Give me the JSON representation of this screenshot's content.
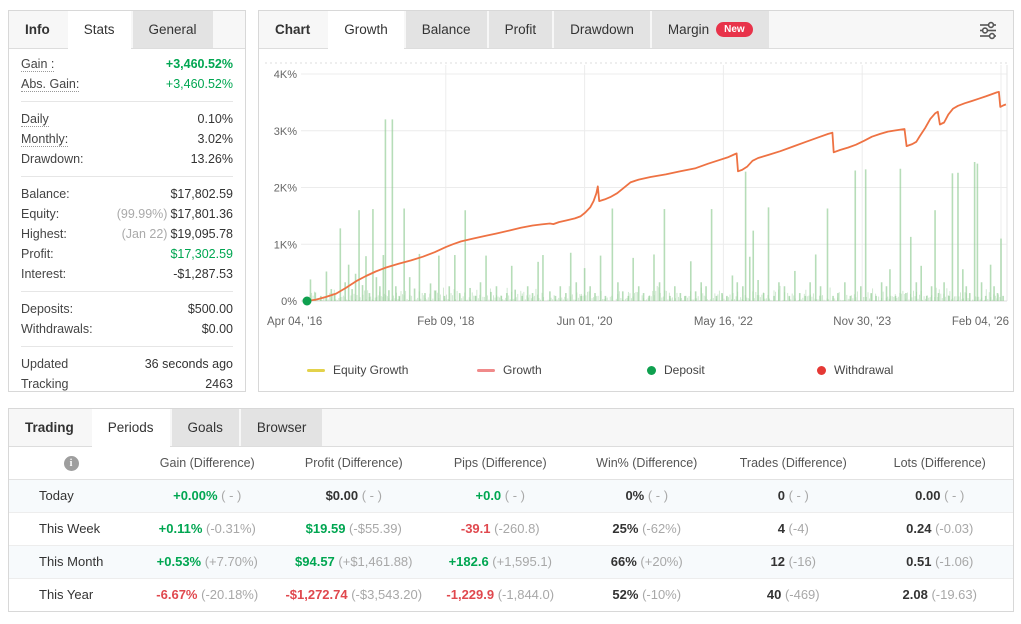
{
  "colors": {
    "green": "#00a651",
    "red": "#e0484e",
    "dark": "#333333",
    "muted": "#a8a8a8",
    "accent_orange": "#ee7243",
    "bar_green": "#97cf9a",
    "deposit_green": "#0fa04f",
    "withdrawal_red": "#e53935",
    "badge_red": "#e8334a",
    "legend_equity": "#e3d24b",
    "legend_growth": "#f08a8a"
  },
  "left_panel": {
    "tabs": [
      {
        "label": "Info",
        "state": "plain"
      },
      {
        "label": "Stats",
        "state": "active"
      },
      {
        "label": "General",
        "state": "inactive"
      }
    ],
    "rows": [
      {
        "label": "Gain :",
        "value": "+3,460.52%",
        "value_color": "green",
        "bold": true,
        "dotted": true
      },
      {
        "label": "Abs. Gain:",
        "value": "+3,460.52%",
        "value_color": "green",
        "dotted": true
      },
      {
        "divider": true
      },
      {
        "label": "Daily",
        "value": "0.10%",
        "dotted": true
      },
      {
        "label": "Monthly:",
        "value": "3.02%",
        "dotted": true
      },
      {
        "label": "Drawdown:",
        "value": "13.26%"
      },
      {
        "divider": true
      },
      {
        "label": "Balance:",
        "value": "$17,802.59"
      },
      {
        "label": "Equity:",
        "prefix": "(99.99%)",
        "value": "$17,801.36"
      },
      {
        "label": "Highest:",
        "prefix": "(Jan 22)",
        "value": "$19,095.78"
      },
      {
        "label": "Profit:",
        "value": "$17,302.59",
        "value_color": "green"
      },
      {
        "label": "Interest:",
        "value": "-$1,287.53"
      },
      {
        "divider": true
      },
      {
        "label": "Deposits:",
        "value": "$500.00"
      },
      {
        "label": "Withdrawals:",
        "value": "$0.00"
      },
      {
        "divider": true
      },
      {
        "label": "Updated",
        "value": "36 seconds ago"
      },
      {
        "label": "Tracking",
        "value": "2463"
      }
    ]
  },
  "chart_panel": {
    "tabs": [
      {
        "label": "Chart",
        "state": "plain"
      },
      {
        "label": "Growth",
        "state": "active"
      },
      {
        "label": "Balance",
        "state": "inactive"
      },
      {
        "label": "Profit",
        "state": "inactive"
      },
      {
        "label": "Drawdown",
        "state": "inactive"
      },
      {
        "label": "Margin",
        "state": "inactive",
        "badge": "New"
      }
    ]
  },
  "chart_data": {
    "type": "line+bar",
    "title": "Growth",
    "y_ticks": [
      "0%",
      "1K%",
      "2K%",
      "3K%",
      "4K%"
    ],
    "y_max_pct": 4000,
    "x_ticks": [
      "Apr 04, '16",
      "Feb 09, '18",
      "Jun 01, '20",
      "May 16, '22",
      "Nov 30, '23",
      "Feb 04, '26"
    ],
    "legend": [
      {
        "label": "Equity Growth",
        "type": "line",
        "color_key": "legend_equity"
      },
      {
        "label": "Growth",
        "type": "line",
        "color_key": "legend_growth"
      },
      {
        "label": "Deposit",
        "type": "dot",
        "color_key": "deposit_green"
      },
      {
        "label": "Withdrawal",
        "type": "dot",
        "color_key": "withdrawal_red"
      }
    ],
    "deposit_marker": {
      "frac": 0,
      "value": 0
    },
    "growth_line": [
      [
        0,
        0
      ],
      [
        0.013,
        25
      ],
      [
        0.027,
        70
      ],
      [
        0.042,
        130
      ],
      [
        0.056,
        230
      ],
      [
        0.071,
        350
      ],
      [
        0.085,
        440
      ],
      [
        0.099,
        520
      ],
      [
        0.114,
        590
      ],
      [
        0.132,
        655
      ],
      [
        0.15,
        715
      ],
      [
        0.167,
        780
      ],
      [
        0.184,
        860
      ],
      [
        0.2,
        950
      ],
      [
        0.21,
        1000
      ],
      [
        0.222,
        1050
      ],
      [
        0.239,
        1100
      ],
      [
        0.256,
        1145
      ],
      [
        0.273,
        1190
      ],
      [
        0.291,
        1240
      ],
      [
        0.308,
        1290
      ],
      [
        0.325,
        1330
      ],
      [
        0.338,
        1350
      ],
      [
        0.35,
        1365
      ],
      [
        0.355,
        1355
      ],
      [
        0.363,
        1390
      ],
      [
        0.374,
        1420
      ],
      [
        0.386,
        1455
      ],
      [
        0.394,
        1490
      ],
      [
        0.401,
        1560
      ],
      [
        0.408,
        1650
      ],
      [
        0.413,
        1760
      ],
      [
        0.417,
        1900
      ],
      [
        0.419,
        2020
      ],
      [
        0.421,
        1760
      ],
      [
        0.429,
        1790
      ],
      [
        0.437,
        1830
      ],
      [
        0.447,
        1900
      ],
      [
        0.458,
        2010
      ],
      [
        0.466,
        2090
      ],
      [
        0.478,
        2140
      ],
      [
        0.495,
        2185
      ],
      [
        0.517,
        2230
      ],
      [
        0.538,
        2285
      ],
      [
        0.56,
        2340
      ],
      [
        0.578,
        2420
      ],
      [
        0.593,
        2480
      ],
      [
        0.606,
        2530
      ],
      [
        0.617,
        2590
      ],
      [
        0.619,
        2600
      ],
      [
        0.621,
        2285
      ],
      [
        0.627,
        2310
      ],
      [
        0.634,
        2365
      ],
      [
        0.642,
        2470
      ],
      [
        0.65,
        2520
      ],
      [
        0.665,
        2575
      ],
      [
        0.682,
        2640
      ],
      [
        0.701,
        2725
      ],
      [
        0.719,
        2805
      ],
      [
        0.737,
        2885
      ],
      [
        0.751,
        2945
      ],
      [
        0.757,
        2965
      ],
      [
        0.759,
        2620
      ],
      [
        0.768,
        2660
      ],
      [
        0.78,
        2705
      ],
      [
        0.791,
        2755
      ],
      [
        0.803,
        2825
      ],
      [
        0.814,
        2895
      ],
      [
        0.826,
        2945
      ],
      [
        0.837,
        2985
      ],
      [
        0.847,
        3005
      ],
      [
        0.861,
        3030
      ],
      [
        0.864,
        2730
      ],
      [
        0.872,
        2765
      ],
      [
        0.878,
        2805
      ],
      [
        0.883,
        2905
      ],
      [
        0.891,
        3055
      ],
      [
        0.898,
        3205
      ],
      [
        0.905,
        3305
      ],
      [
        0.909,
        3335
      ],
      [
        0.912,
        3110
      ],
      [
        0.918,
        3145
      ],
      [
        0.924,
        3285
      ],
      [
        0.931,
        3390
      ],
      [
        0.938,
        3440
      ],
      [
        0.948,
        3485
      ],
      [
        0.958,
        3525
      ],
      [
        0.968,
        3565
      ],
      [
        0.978,
        3605
      ],
      [
        0.987,
        3645
      ],
      [
        0.994,
        3675
      ],
      [
        0.997,
        3685
      ],
      [
        0.999,
        3420
      ],
      [
        1.003,
        3445
      ],
      [
        1.007,
        3465
      ]
    ],
    "equity_bars": [
      [
        0.005,
        380
      ],
      [
        0.012,
        150
      ],
      [
        0.02,
        90
      ],
      [
        0.028,
        520
      ],
      [
        0.035,
        210
      ],
      [
        0.04,
        120
      ],
      [
        0.048,
        1280
      ],
      [
        0.055,
        330
      ],
      [
        0.06,
        640
      ],
      [
        0.065,
        210
      ],
      [
        0.07,
        480
      ],
      [
        0.075,
        1600
      ],
      [
        0.08,
        280
      ],
      [
        0.085,
        790
      ],
      [
        0.09,
        140
      ],
      [
        0.095,
        1620
      ],
      [
        0.1,
        420
      ],
      [
        0.105,
        260
      ],
      [
        0.11,
        810
      ],
      [
        0.113,
        3200
      ],
      [
        0.118,
        190
      ],
      [
        0.123,
        3200
      ],
      [
        0.128,
        260
      ],
      [
        0.133,
        90
      ],
      [
        0.14,
        1630
      ],
      [
        0.148,
        420
      ],
      [
        0.155,
        220
      ],
      [
        0.162,
        830
      ],
      [
        0.17,
        140
      ],
      [
        0.178,
        310
      ],
      [
        0.185,
        180
      ],
      [
        0.19,
        800
      ],
      [
        0.198,
        90
      ],
      [
        0.205,
        260
      ],
      [
        0.213,
        810
      ],
      [
        0.22,
        140
      ],
      [
        0.228,
        1600
      ],
      [
        0.235,
        230
      ],
      [
        0.243,
        90
      ],
      [
        0.25,
        330
      ],
      [
        0.258,
        800
      ],
      [
        0.265,
        160
      ],
      [
        0.273,
        260
      ],
      [
        0.28,
        90
      ],
      [
        0.288,
        140
      ],
      [
        0.295,
        620
      ],
      [
        0.3,
        200
      ],
      [
        0.31,
        90
      ],
      [
        0.318,
        260
      ],
      [
        0.325,
        140
      ],
      [
        0.333,
        690
      ],
      [
        0.34,
        810
      ],
      [
        0.35,
        170
      ],
      [
        0.358,
        90
      ],
      [
        0.365,
        260
      ],
      [
        0.373,
        140
      ],
      [
        0.38,
        850
      ],
      [
        0.388,
        330
      ],
      [
        0.395,
        90
      ],
      [
        0.4,
        580
      ],
      [
        0.408,
        260
      ],
      [
        0.415,
        140
      ],
      [
        0.423,
        800
      ],
      [
        0.43,
        90
      ],
      [
        0.44,
        1630
      ],
      [
        0.448,
        330
      ],
      [
        0.455,
        170
      ],
      [
        0.463,
        90
      ],
      [
        0.47,
        760
      ],
      [
        0.478,
        260
      ],
      [
        0.485,
        140
      ],
      [
        0.493,
        90
      ],
      [
        0.5,
        820
      ],
      [
        0.508,
        330
      ],
      [
        0.515,
        1620
      ],
      [
        0.523,
        90
      ],
      [
        0.53,
        260
      ],
      [
        0.538,
        140
      ],
      [
        0.545,
        90
      ],
      [
        0.553,
        700
      ],
      [
        0.56,
        170
      ],
      [
        0.568,
        330
      ],
      [
        0.575,
        260
      ],
      [
        0.583,
        1620
      ],
      [
        0.59,
        90
      ],
      [
        0.598,
        140
      ],
      [
        0.605,
        90
      ],
      [
        0.613,
        450
      ],
      [
        0.62,
        330
      ],
      [
        0.628,
        260
      ],
      [
        0.632,
        2280
      ],
      [
        0.638,
        780
      ],
      [
        0.643,
        1240
      ],
      [
        0.65,
        370
      ],
      [
        0.658,
        140
      ],
      [
        0.665,
        1650
      ],
      [
        0.673,
        90
      ],
      [
        0.68,
        330
      ],
      [
        0.688,
        260
      ],
      [
        0.695,
        90
      ],
      [
        0.703,
        530
      ],
      [
        0.71,
        140
      ],
      [
        0.718,
        90
      ],
      [
        0.725,
        330
      ],
      [
        0.733,
        820
      ],
      [
        0.74,
        260
      ],
      [
        0.75,
        1630
      ],
      [
        0.758,
        90
      ],
      [
        0.765,
        140
      ],
      [
        0.775,
        330
      ],
      [
        0.783,
        90
      ],
      [
        0.79,
        2300
      ],
      [
        0.798,
        260
      ],
      [
        0.805,
        2320
      ],
      [
        0.813,
        140
      ],
      [
        0.82,
        90
      ],
      [
        0.828,
        330
      ],
      [
        0.835,
        260
      ],
      [
        0.84,
        560
      ],
      [
        0.848,
        90
      ],
      [
        0.855,
        2330
      ],
      [
        0.863,
        140
      ],
      [
        0.87,
        1130
      ],
      [
        0.878,
        330
      ],
      [
        0.885,
        620
      ],
      [
        0.893,
        90
      ],
      [
        0.9,
        260
      ],
      [
        0.905,
        1600
      ],
      [
        0.91,
        140
      ],
      [
        0.918,
        330
      ],
      [
        0.925,
        90
      ],
      [
        0.93,
        2250
      ],
      [
        0.938,
        2260
      ],
      [
        0.945,
        560
      ],
      [
        0.95,
        260
      ],
      [
        0.955,
        140
      ],
      [
        0.962,
        2450
      ],
      [
        0.966,
        2420
      ],
      [
        0.972,
        330
      ],
      [
        0.978,
        90
      ],
      [
        0.985,
        640
      ],
      [
        0.99,
        260
      ],
      [
        0.995,
        140
      ],
      [
        1.0,
        1100
      ],
      [
        1.003,
        90
      ]
    ],
    "noise_bars": {
      "count": 460,
      "max_pct": 280,
      "seed": 7
    }
  },
  "bottom_panel": {
    "tabs": [
      {
        "label": "Trading",
        "state": "plain"
      },
      {
        "label": "Periods",
        "state": "active"
      },
      {
        "label": "Goals",
        "state": "inactive"
      },
      {
        "label": "Browser",
        "state": "inactive"
      }
    ],
    "table": {
      "columns": [
        "Gain (Difference)",
        "Profit (Difference)",
        "Pips (Difference)",
        "Win% (Difference)",
        "Trades (Difference)",
        "Lots (Difference)"
      ],
      "rows": [
        {
          "label": "Today",
          "cells": [
            {
              "main": "+0.00%",
              "diff": "( - )",
              "color": "green"
            },
            {
              "main": "$0.00",
              "diff": "( - )",
              "color": "dark"
            },
            {
              "main": "+0.0",
              "diff": "( - )",
              "color": "green"
            },
            {
              "main": "0%",
              "diff": "( - )",
              "color": "dark"
            },
            {
              "main": "0",
              "diff": "( - )",
              "color": "dark"
            },
            {
              "main": "0.00",
              "diff": "( - )",
              "color": "dark"
            }
          ]
        },
        {
          "label": "This Week",
          "cells": [
            {
              "main": "+0.11%",
              "diff": "(-0.31%)",
              "color": "green"
            },
            {
              "main": "$19.59",
              "diff": "(-$55.39)",
              "color": "green"
            },
            {
              "main": "-39.1",
              "diff": "(-260.8)",
              "color": "red"
            },
            {
              "main": "25%",
              "diff": "(-62%)",
              "color": "dark"
            },
            {
              "main": "4",
              "diff": "(-4)",
              "color": "dark"
            },
            {
              "main": "0.24",
              "diff": "(-0.03)",
              "color": "dark"
            }
          ]
        },
        {
          "label": "This Month",
          "cells": [
            {
              "main": "+0.53%",
              "diff": "(+7.70%)",
              "color": "green"
            },
            {
              "main": "$94.57",
              "diff": "(+$1,461.88)",
              "color": "green"
            },
            {
              "main": "+182.6",
              "diff": "(+1,595.1)",
              "color": "green"
            },
            {
              "main": "66%",
              "diff": "(+20%)",
              "color": "dark"
            },
            {
              "main": "12",
              "diff": "(-16)",
              "color": "dark"
            },
            {
              "main": "0.51",
              "diff": "(-1.06)",
              "color": "dark"
            }
          ]
        },
        {
          "label": "This Year",
          "cells": [
            {
              "main": "-6.67%",
              "diff": "(-20.18%)",
              "color": "red"
            },
            {
              "main": "-$1,272.74",
              "diff": "(-$3,543.20)",
              "color": "red"
            },
            {
              "main": "-1,229.9",
              "diff": "(-1,844.0)",
              "color": "red"
            },
            {
              "main": "52%",
              "diff": "(-10%)",
              "color": "dark"
            },
            {
              "main": "40",
              "diff": "(-469)",
              "color": "dark"
            },
            {
              "main": "2.08",
              "diff": "(-19.63)",
              "color": "dark"
            }
          ]
        }
      ]
    }
  }
}
